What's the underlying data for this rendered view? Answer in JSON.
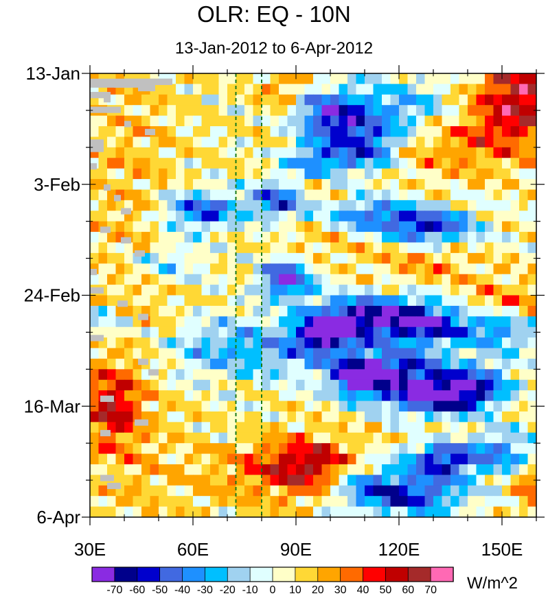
{
  "chart_data": {
    "type": "heatmap",
    "title": "OLR: EQ - 10N",
    "subtitle": "13-Jan-2012 to 6-Apr-2012",
    "x_axis": {
      "range": [
        30,
        160
      ],
      "ticks": [
        30,
        60,
        90,
        120,
        150
      ],
      "tick_labels": [
        "30E",
        "60E",
        "90E",
        "120E",
        "150E"
      ]
    },
    "y_axis": {
      "orientation": "time increasing downward",
      "ticks": [
        "13-Jan",
        "3-Feb",
        "24-Feb",
        "16-Mar",
        "6-Apr"
      ],
      "tick_labels": [
        "13-Jan",
        "3-Feb",
        "24-Feb",
        "16-Mar",
        "6-Apr"
      ],
      "days_from_start": [
        0,
        21,
        42,
        63,
        84
      ],
      "range_days": [
        0,
        84
      ]
    },
    "reference_lines": [
      {
        "type": "vertical",
        "x": 72.5,
        "style": "dashed",
        "color": "#1a7a1a"
      },
      {
        "type": "vertical",
        "x": 80,
        "style": "dashed",
        "color": "#1a7a1a"
      }
    ],
    "colorbar": {
      "units": "W/m^2",
      "levels": [
        -70,
        -60,
        -50,
        -40,
        -30,
        -20,
        -10,
        0,
        10,
        20,
        30,
        40,
        50,
        60,
        70
      ],
      "level_labels": [
        "-70",
        "-60",
        "-50",
        "-40",
        "-30",
        "-20",
        "-10",
        "0",
        "10",
        "20",
        "30",
        "40",
        "50",
        "60",
        "70"
      ],
      "colors": [
        "#8a2be2",
        "#00008b",
        "#0000cd",
        "#4169e1",
        "#1e90ff",
        "#00bfff",
        "#a0d2f0",
        "#e0ffff",
        "#ffffc8",
        "#ffd835",
        "#ffa500",
        "#ff6a00",
        "#ff0000",
        "#c00000",
        "#a52a2a",
        "#ff69b4"
      ]
    },
    "missing_color": "#c0c0c0",
    "anomaly_field_description": [
      {
        "region": "30E-60E, 13-Jan to 6-Apr",
        "sign": "mostly positive (yellow/orange), peak ~50 near 35E mid-March"
      },
      {
        "region": "75E-160E, 13-Jan to 24-Feb",
        "sign": "negative bands (blue), minima ~-70 near 85E 24-Feb and 95E 20-Feb"
      },
      {
        "region": "90E-160E, 27-Feb to 16-Mar",
        "sign": "strong negative band, minima ~-70 near 98E and 125E"
      },
      {
        "region": "80E-100E, 19-Mar to 26-Mar",
        "sign": "positive, peak ~50 near 95E"
      },
      {
        "region": "130E-160E, 13-Jan to 3-Feb",
        "sign": "positive (orange/red), peak ~60 near 158E"
      }
    ]
  }
}
